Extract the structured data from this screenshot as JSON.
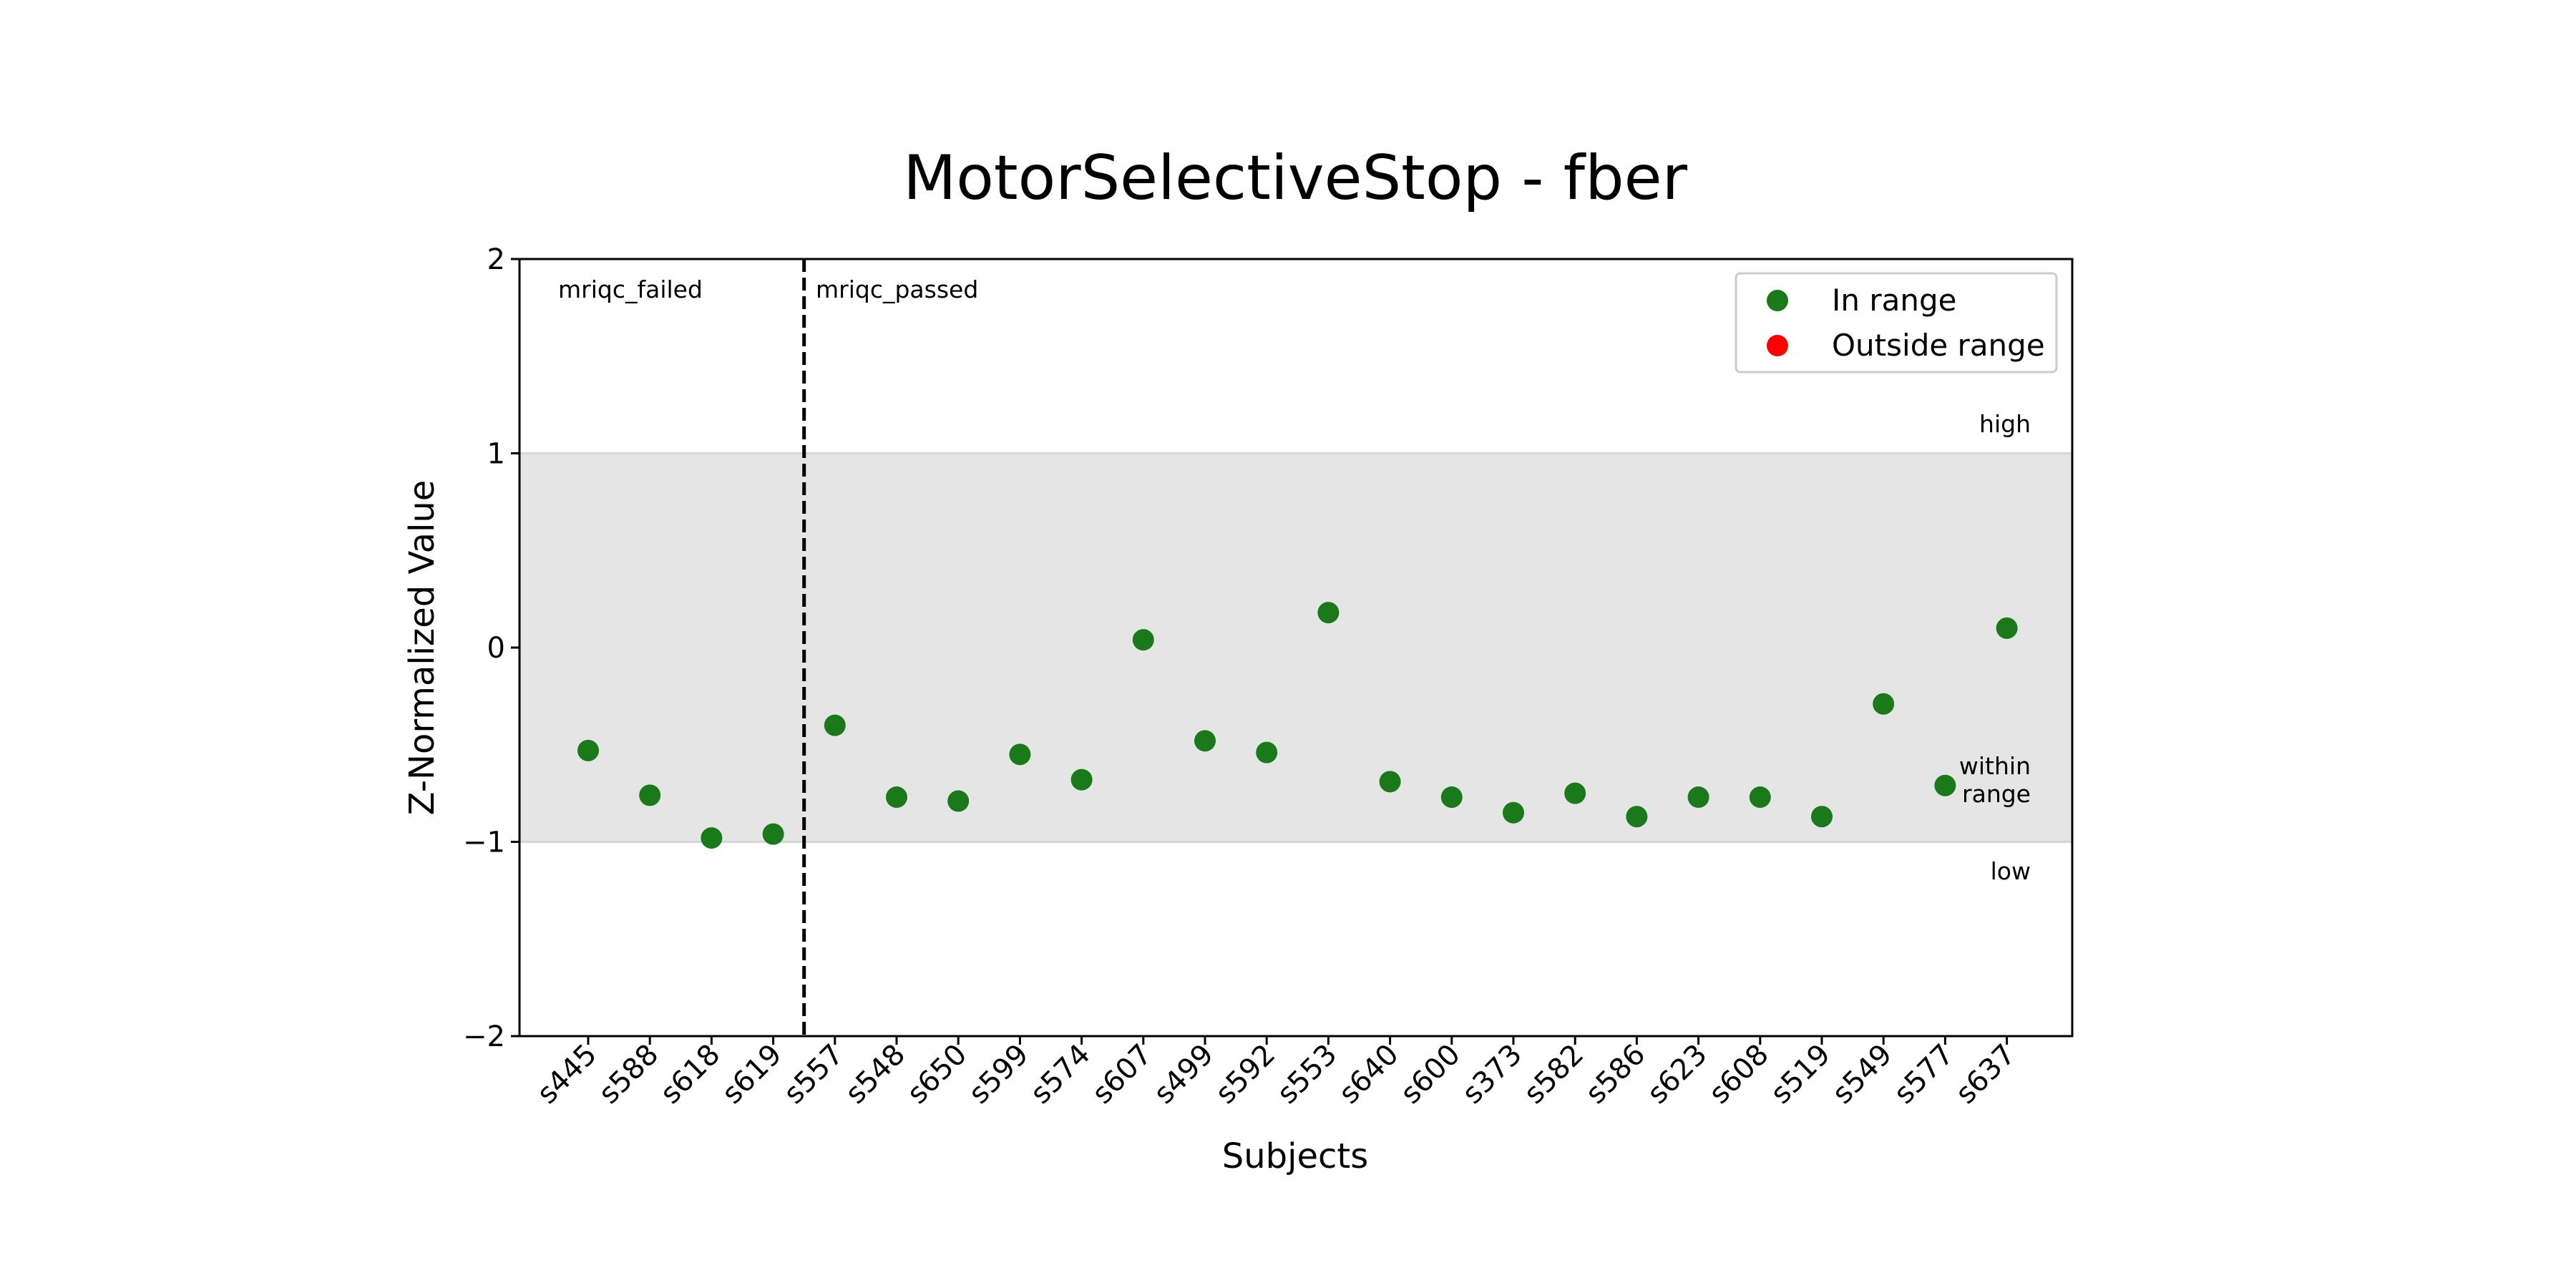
{
  "chart_data": {
    "type": "scatter",
    "title": "MotorSelectiveStop - fber",
    "xlabel": "Subjects",
    "ylabel": "Z-Normalized Value",
    "ylim": [
      -2,
      2
    ],
    "yticks": [
      2,
      1,
      0,
      -1,
      -2
    ],
    "ytick_labels": [
      "2",
      "1",
      "0",
      "−1",
      "−2"
    ],
    "categories": [
      "s445",
      "s588",
      "s618",
      "s619",
      "s557",
      "s548",
      "s650",
      "s599",
      "s574",
      "s607",
      "s499",
      "s592",
      "s553",
      "s640",
      "s600",
      "s373",
      "s582",
      "s586",
      "s623",
      "s608",
      "s519",
      "s549",
      "s577",
      "s637"
    ],
    "series": [
      {
        "name": "In range",
        "color": "#1a7a1a",
        "values": [
          -0.53,
          -0.76,
          -0.98,
          -0.96,
          -0.4,
          -0.77,
          -0.79,
          -0.55,
          -0.68,
          0.04,
          -0.48,
          -0.54,
          0.18,
          -0.69,
          -0.77,
          -0.85,
          -0.75,
          -0.87,
          -0.77,
          -0.77,
          -0.87,
          -0.29,
          -0.71,
          0.1
        ]
      },
      {
        "name": "Outside range",
        "color": "#ff0000",
        "values": []
      }
    ],
    "shaded_band": {
      "from": -1,
      "to": 1,
      "color": "#e5e5e5"
    },
    "band_labels": {
      "high": "high",
      "within": [
        "within",
        "range"
      ],
      "low": "low"
    },
    "divider": {
      "after_index": 3,
      "left_label": "mriqc_failed",
      "right_label": "mriqc_passed"
    },
    "legend_position": "top-right",
    "grid": false
  }
}
